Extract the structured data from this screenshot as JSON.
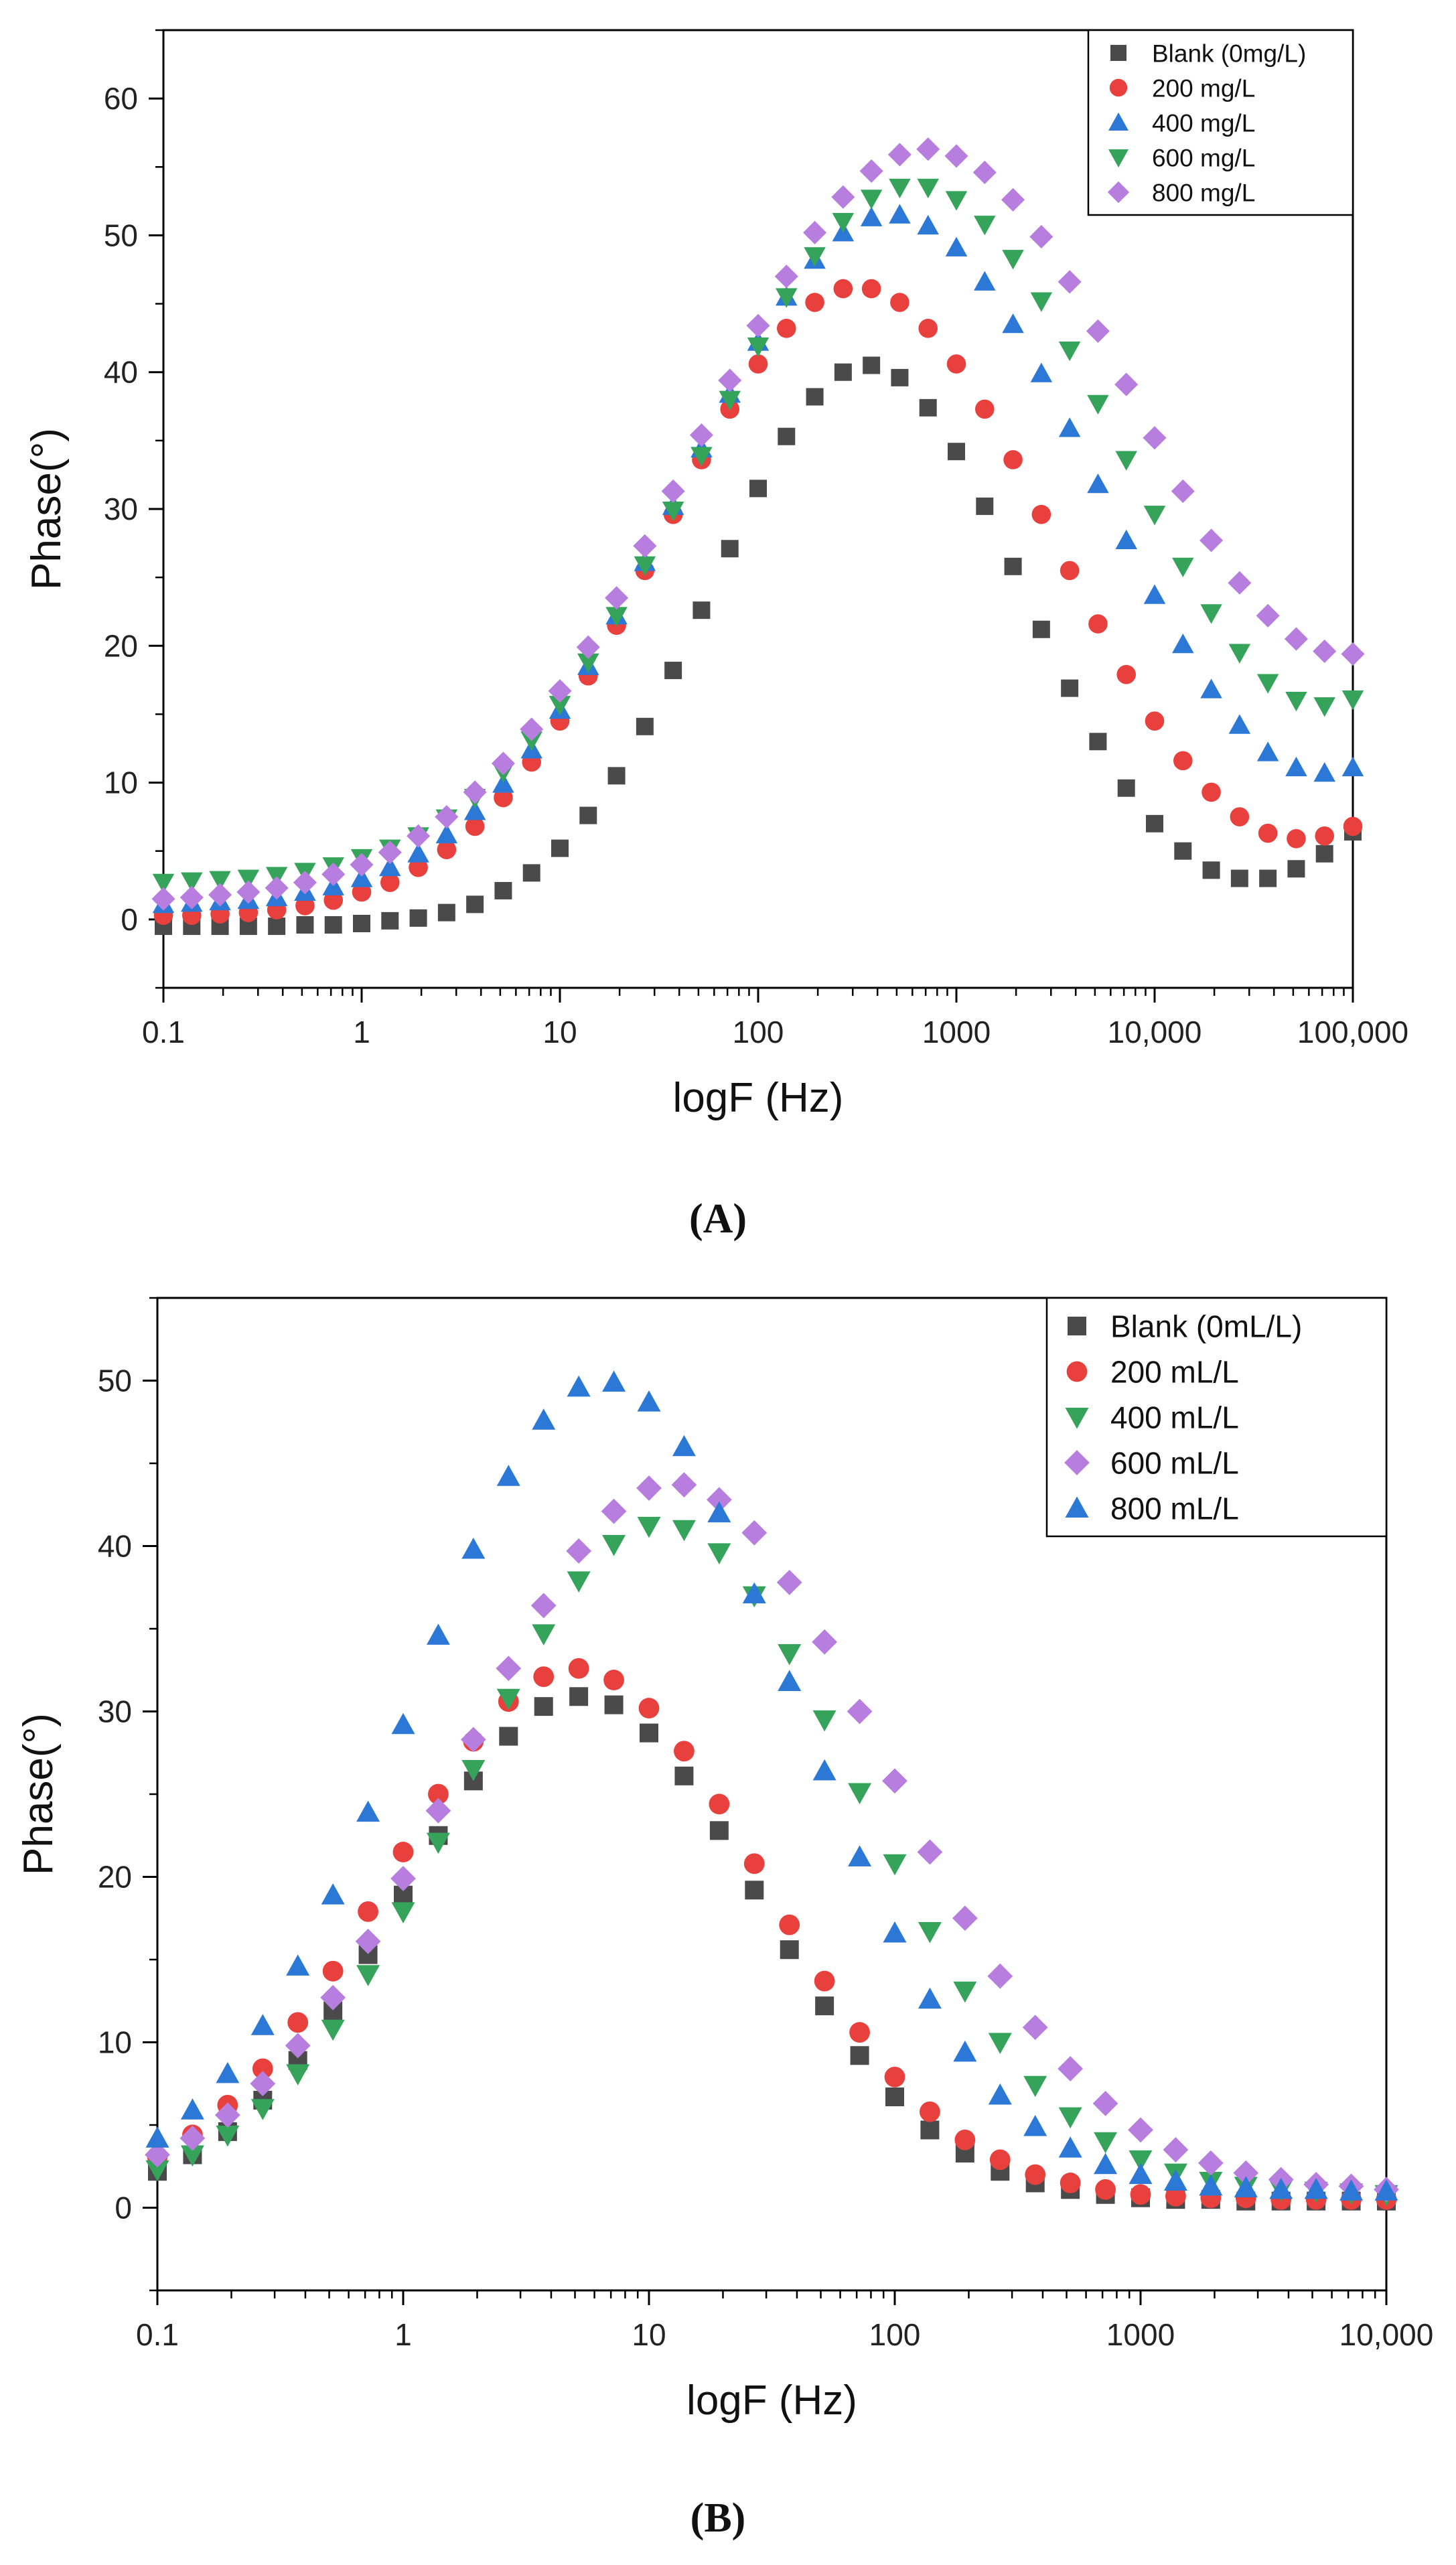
{
  "chart_data": [
    {
      "type": "scatter",
      "panel_label": "(A)",
      "xscale": "log",
      "xlabel": "logF (Hz)",
      "ylabel": "Phase(°)",
      "xlim": [
        0.1,
        100000
      ],
      "ylim": [
        -5,
        65
      ],
      "x_ticks": [
        {
          "value": 0.1,
          "label": "0.1"
        },
        {
          "value": 1,
          "label": "1"
        },
        {
          "value": 10,
          "label": "10"
        },
        {
          "value": 100,
          "label": "100"
        },
        {
          "value": 1000,
          "label": "1000"
        },
        {
          "value": 10000,
          "label": "10,000"
        },
        {
          "value": 100000,
          "label": "100,000"
        }
      ],
      "y_ticks": [
        {
          "value": 0,
          "label": "0"
        },
        {
          "value": 10,
          "label": "10"
        },
        {
          "value": 20,
          "label": "20"
        },
        {
          "value": 30,
          "label": "30"
        },
        {
          "value": 40,
          "label": "40"
        },
        {
          "value": 50,
          "label": "50"
        },
        {
          "value": 60,
          "label": "60"
        }
      ],
      "legend_position": "top-right",
      "series": [
        {
          "name": "Blank (0mg/L)",
          "marker": "square",
          "color": "#4a4a4a",
          "model": {
            "amp": 41,
            "logfc": 2.55,
            "width": 0.78,
            "base": -0.5,
            "hf_amp": 12,
            "hf_center": 5.6,
            "hf_width": 0.55
          }
        },
        {
          "name": "200 mg/L",
          "marker": "circle",
          "color": "#e8413d",
          "model": {
            "amp": 46,
            "logfc": 2.5,
            "width": 0.98,
            "base": 0.2,
            "hf_amp": 10,
            "hf_center": 5.6,
            "hf_width": 0.5
          }
        },
        {
          "name": "400 mg/L",
          "marker": "triangle-up",
          "color": "#2b78d6",
          "model": {
            "amp": 50.5,
            "logfc": 2.67,
            "width": 1.05,
            "base": 1.0,
            "hf_amp": 12,
            "hf_center": 5.6,
            "hf_width": 0.5
          }
        },
        {
          "name": "600 mg/L",
          "marker": "triangle-down",
          "color": "#35a35a",
          "model": {
            "amp": 51,
            "logfc": 2.78,
            "width": 1.08,
            "base": 2.6,
            "hf_amp": 15,
            "hf_center": 5.6,
            "hf_width": 0.5
          }
        },
        {
          "name": "800 mg/L",
          "marker": "diamond",
          "color": "#b77ee0",
          "model": {
            "amp": 55,
            "logfc": 2.85,
            "width": 1.16,
            "base": 1.3,
            "hf_amp": 15,
            "hf_center": 5.6,
            "hf_width": 0.55
          }
        }
      ]
    },
    {
      "type": "scatter",
      "panel_label": "(B)",
      "xscale": "log",
      "xlabel": "logF (Hz)",
      "ylabel": "Phase(°)",
      "xlim": [
        0.1,
        10000
      ],
      "ylim": [
        -5,
        55
      ],
      "x_ticks": [
        {
          "value": 0.1,
          "label": "0.1"
        },
        {
          "value": 1,
          "label": "1"
        },
        {
          "value": 10,
          "label": "10"
        },
        {
          "value": 100,
          "label": "100"
        },
        {
          "value": 1000,
          "label": "1000"
        },
        {
          "value": 10000,
          "label": "10,000"
        }
      ],
      "y_ticks": [
        {
          "value": 0,
          "label": "0"
        },
        {
          "value": 10,
          "label": "10"
        },
        {
          "value": 20,
          "label": "20"
        },
        {
          "value": 30,
          "label": "30"
        },
        {
          "value": 40,
          "label": "40"
        },
        {
          "value": 50,
          "label": "50"
        }
      ],
      "legend_position": "top-right",
      "series": [
        {
          "name": "Blank (0mL/L)",
          "marker": "square",
          "color": "#4a4a4a",
          "model": {
            "amp": 30.5,
            "logfc": 0.72,
            "width": 0.72,
            "base": 0.4
          }
        },
        {
          "name": "200 mL/L",
          "marker": "circle",
          "color": "#e8413d",
          "model": {
            "amp": 32.1,
            "logfc": 0.7,
            "width": 0.76,
            "base": 0.5
          }
        },
        {
          "name": "400 mL/L",
          "marker": "triangle-down",
          "color": "#35a35a",
          "model": {
            "amp": 40.5,
            "logfc": 1.05,
            "width": 0.8,
            "base": 0.8
          }
        },
        {
          "name": "600 mL/L",
          "marker": "diamond",
          "color": "#b77ee0",
          "model": {
            "amp": 42.8,
            "logfc": 1.1,
            "width": 0.86,
            "base": 1.0
          }
        },
        {
          "name": "800 mL/L",
          "marker": "triangle-up",
          "color": "#2b78d6",
          "model": {
            "amp": 49.0,
            "logfc": 0.82,
            "width": 0.78,
            "base": 1.0
          }
        }
      ]
    }
  ]
}
